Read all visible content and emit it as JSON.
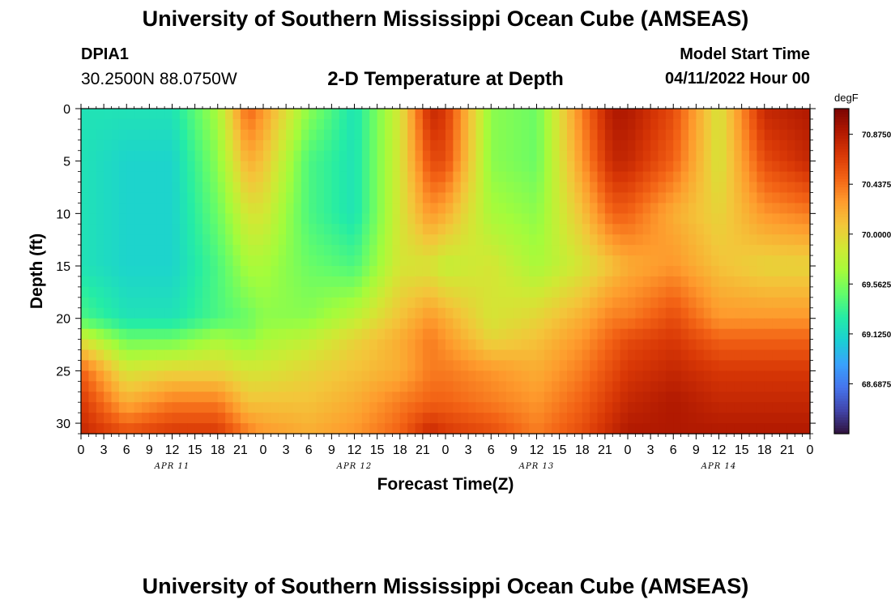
{
  "header": {
    "title": "University of Southern Mississippi Ocean Cube (AMSEAS)",
    "station": "DPIA1",
    "coords": "30.2500N  88.0750W",
    "plot_title": "2-D Temperature at Depth",
    "model_start_label": "Model Start Time",
    "model_start_value": "04/11/2022 Hour 00"
  },
  "footer": {
    "title": "University of Southern Mississippi Ocean Cube (AMSEAS)"
  },
  "colors": {
    "colormap": [
      "#30123b",
      "#4145ab",
      "#4675ed",
      "#39a2fc",
      "#1bcfd4",
      "#24eca6",
      "#61fc6c",
      "#a4fc3b",
      "#d1e834",
      "#f3c63a",
      "#fe9b2d",
      "#f36315",
      "#d93806",
      "#b11901",
      "#7a0403"
    ]
  },
  "chart_data": {
    "type": "heatmap",
    "xlabel": "Forecast Time(Z)",
    "ylabel": "Depth (ft)",
    "x_range_hours": [
      0,
      96
    ],
    "ylim": [
      0,
      31
    ],
    "x_tick_labels": [
      "0",
      "3",
      "6",
      "9",
      "12",
      "15",
      "18",
      "21",
      "0",
      "3",
      "6",
      "9",
      "12",
      "15",
      "18",
      "21",
      "0",
      "3",
      "6",
      "9",
      "12",
      "15",
      "18",
      "21",
      "0",
      "3",
      "6",
      "9",
      "12",
      "15",
      "18",
      "21",
      "0"
    ],
    "date_labels": [
      {
        "label": "APR 11",
        "hour": 12
      },
      {
        "label": "APR 12",
        "hour": 36
      },
      {
        "label": "APR 13",
        "hour": 60
      },
      {
        "label": "APR 14",
        "hour": 84
      }
    ],
    "y_ticks": [
      0,
      5,
      10,
      15,
      20,
      25,
      30
    ],
    "colorbar": {
      "unit": "degF",
      "min": 68.25,
      "max": 71.1,
      "tick_labels": [
        "70.8750",
        "70.4375",
        "70.0000",
        "69.5625",
        "69.1250",
        "68.6875"
      ],
      "tick_values": [
        70.875,
        70.4375,
        70.0,
        69.5625,
        69.125,
        68.6875
      ]
    },
    "hours": [
      0,
      6,
      12,
      18,
      22,
      24,
      30,
      36,
      42,
      46,
      48,
      54,
      60,
      66,
      70,
      72,
      78,
      84,
      90,
      96
    ],
    "depths_ft": [
      0,
      5,
      10,
      15,
      20,
      22,
      25,
      28,
      31
    ],
    "z": [
      [
        69.2,
        69.2,
        69.2,
        69.7,
        70.5,
        70.3,
        69.6,
        69.2,
        69.9,
        70.8,
        70.7,
        69.6,
        69.5,
        70.4,
        70.9,
        70.9,
        70.6,
        69.9,
        70.8,
        70.9
      ],
      [
        69.2,
        69.1,
        69.1,
        69.6,
        70.2,
        70.1,
        69.4,
        69.2,
        69.9,
        70.6,
        70.6,
        69.6,
        69.5,
        70.3,
        70.8,
        70.8,
        70.5,
        69.9,
        70.6,
        70.8
      ],
      [
        69.2,
        69.1,
        69.1,
        69.5,
        69.9,
        69.9,
        69.4,
        69.2,
        69.9,
        70.3,
        70.2,
        69.7,
        69.6,
        70.1,
        70.5,
        70.5,
        70.2,
        70.0,
        70.3,
        70.4
      ],
      [
        69.2,
        69.1,
        69.1,
        69.4,
        69.7,
        69.7,
        69.5,
        69.4,
        69.9,
        69.9,
        69.8,
        69.9,
        69.7,
        69.9,
        70.1,
        70.2,
        70.3,
        70.1,
        70.0,
        70.0
      ],
      [
        69.4,
        69.2,
        69.2,
        69.4,
        69.5,
        69.6,
        69.6,
        69.8,
        70.1,
        70.3,
        70.2,
        69.9,
        70.0,
        70.2,
        70.4,
        70.4,
        70.6,
        70.3,
        70.3,
        70.3
      ],
      [
        69.9,
        69.5,
        69.5,
        69.7,
        69.6,
        69.7,
        69.8,
        70.0,
        70.2,
        70.4,
        70.3,
        70.0,
        70.1,
        70.3,
        70.5,
        70.6,
        70.7,
        70.5,
        70.5,
        70.5
      ],
      [
        70.5,
        69.9,
        70.0,
        70.0,
        69.9,
        69.9,
        70.0,
        70.1,
        70.2,
        70.4,
        70.4,
        70.3,
        70.2,
        70.4,
        70.6,
        70.7,
        70.8,
        70.7,
        70.7,
        70.7
      ],
      [
        70.7,
        70.2,
        70.4,
        70.4,
        70.1,
        70.1,
        70.1,
        70.2,
        70.4,
        70.5,
        70.5,
        70.4,
        70.3,
        70.5,
        70.7,
        70.8,
        70.9,
        70.8,
        70.8,
        70.8
      ],
      [
        70.8,
        70.6,
        70.7,
        70.7,
        70.4,
        70.3,
        70.2,
        70.3,
        70.5,
        70.8,
        70.7,
        70.6,
        70.4,
        70.6,
        70.8,
        70.9,
        70.9,
        70.9,
        70.9,
        70.9
      ]
    ]
  }
}
